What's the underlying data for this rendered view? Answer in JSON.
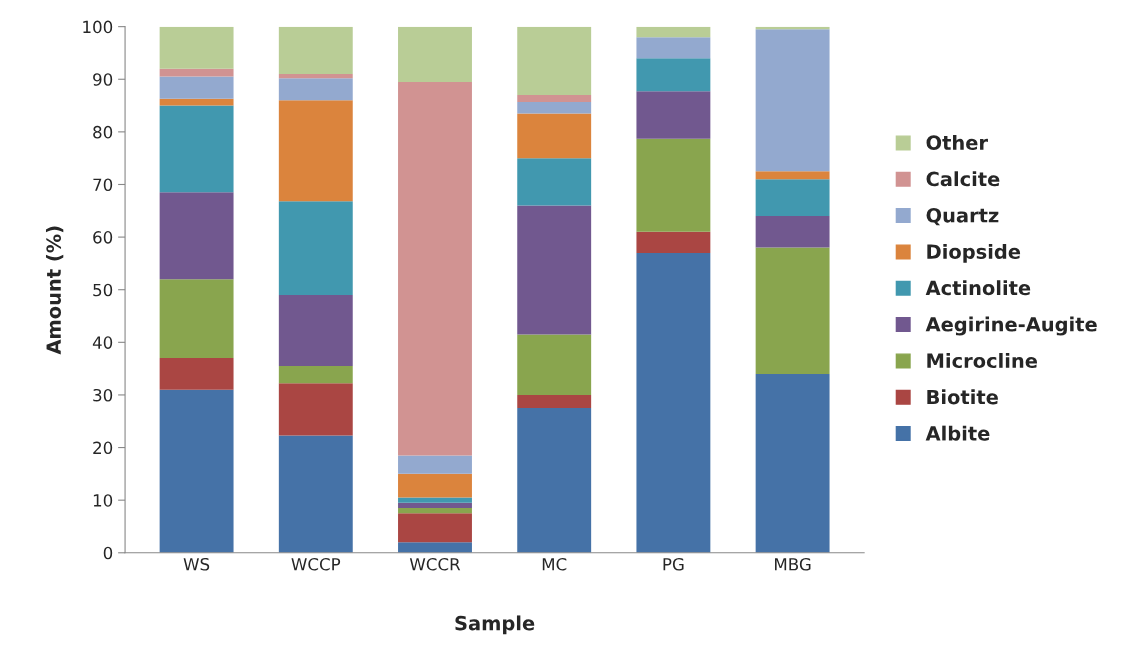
{
  "chart_data": {
    "type": "bar",
    "stacked": true,
    "xlabel": "Sample",
    "ylabel": "Amount (%)",
    "categories": [
      "WS",
      "WCCP",
      "WCCR",
      "MC",
      "PG",
      "MBG"
    ],
    "series": [
      {
        "name": "Albite",
        "color": "#4572a7",
        "values": [
          31,
          22.3,
          2,
          27.5,
          57,
          34
        ]
      },
      {
        "name": "Biotite",
        "color": "#aa4643",
        "values": [
          6,
          9.9,
          5.5,
          2.5,
          4,
          0
        ]
      },
      {
        "name": "Microcline",
        "color": "#89a54e",
        "values": [
          15,
          3.3,
          1,
          11.5,
          17.7,
          24
        ]
      },
      {
        "name": "Aegirine-Augite",
        "color": "#71588f",
        "values": [
          16.5,
          13.5,
          1,
          24.5,
          9,
          6
        ]
      },
      {
        "name": "Actinolite",
        "color": "#4198af",
        "values": [
          16.5,
          17.8,
          1,
          9,
          6.3,
          7
        ]
      },
      {
        "name": "Diopside",
        "color": "#db843d",
        "values": [
          1.3,
          19.2,
          4.5,
          8.5,
          0,
          1.5
        ]
      },
      {
        "name": "Quartz",
        "color": "#93a9cf",
        "values": [
          4.2,
          4.2,
          3.5,
          2.2,
          4,
          27
        ]
      },
      {
        "name": "Calcite",
        "color": "#d19392",
        "values": [
          1.5,
          0.8,
          71,
          1.3,
          0,
          0
        ]
      },
      {
        "name": "Other",
        "color": "#b9cd96",
        "values": [
          8,
          9,
          10.5,
          13,
          2,
          0.5
        ]
      }
    ],
    "ylim": [
      0,
      100
    ],
    "yticks": [
      0,
      10,
      20,
      30,
      40,
      50,
      60,
      70,
      80,
      90,
      100
    ],
    "grid": false,
    "legend": "right"
  }
}
